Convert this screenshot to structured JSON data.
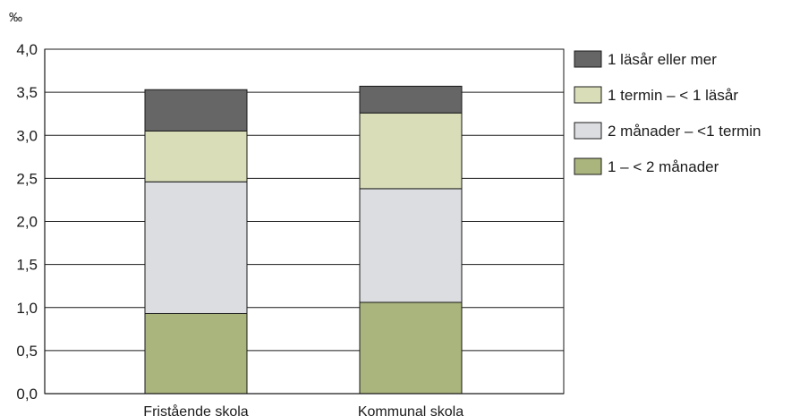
{
  "chart_data": {
    "type": "bar",
    "stacked": true,
    "title": "",
    "xlabel": "",
    "ylabel": "‰",
    "unit_label": "‰",
    "ylim": [
      0,
      4.0
    ],
    "yticks": [
      "0,0",
      "0,5",
      "1,0",
      "1,5",
      "2,0",
      "2,5",
      "3,0",
      "3,5",
      "4,0"
    ],
    "ytick_values": [
      0,
      0.5,
      1.0,
      1.5,
      2.0,
      2.5,
      3.0,
      3.5,
      4.0
    ],
    "grid": true,
    "legend_position": "right",
    "categories": [
      "Fristående skola",
      "Kommunal skola"
    ],
    "series": [
      {
        "name": "1 – < 2 månader",
        "color": "#a9b57c",
        "values": [
          0.93,
          1.06
        ]
      },
      {
        "name": "2 månader – <1 termin",
        "color": "#dcdde0",
        "values": [
          1.53,
          1.32
        ]
      },
      {
        "name": "1 termin – < 1 läsår",
        "color": "#d9ddb8",
        "values": [
          0.59,
          0.88
        ]
      },
      {
        "name": "1 läsår eller mer",
        "color": "#666666",
        "values": [
          0.48,
          0.31
        ]
      }
    ],
    "legend_order": [
      3,
      2,
      1,
      0
    ]
  }
}
